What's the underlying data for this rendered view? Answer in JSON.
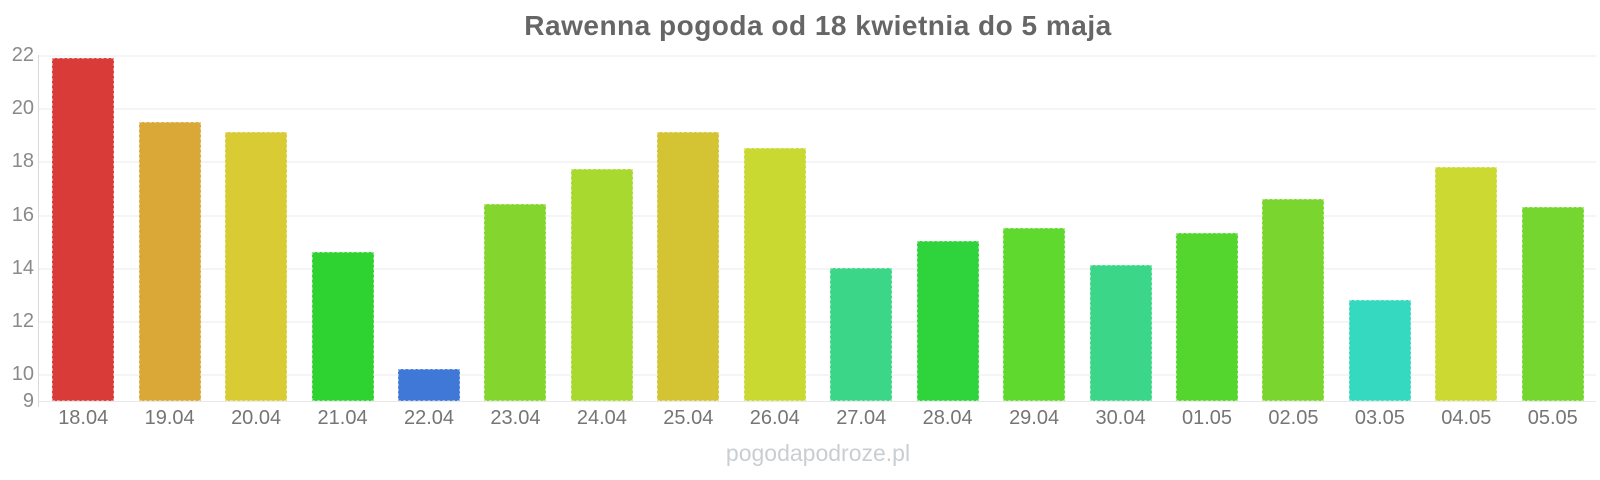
{
  "watermark": "pogodapodroze.pl",
  "chart_data": {
    "type": "bar",
    "title": "Rawenna pogoda od 18 kwietnia do 5 maja",
    "xlabel": "",
    "ylabel": "",
    "ylim": [
      9,
      22
    ],
    "yticks": [
      22,
      20,
      18,
      16,
      14,
      12,
      10,
      9
    ],
    "grid": true,
    "legend": false,
    "categories": [
      "18.04",
      "19.04",
      "20.04",
      "21.04",
      "22.04",
      "23.04",
      "24.04",
      "25.04",
      "26.04",
      "27.04",
      "28.04",
      "29.04",
      "30.04",
      "01.05",
      "02.05",
      "03.05",
      "04.05",
      "05.05"
    ],
    "values": [
      21.9,
      19.5,
      19.1,
      14.6,
      10.2,
      16.4,
      17.7,
      19.1,
      18.5,
      14.0,
      15.0,
      15.5,
      14.1,
      15.3,
      16.6,
      12.8,
      17.8,
      16.3
    ],
    "bar_colors": [
      "#d93b38",
      "#daa836",
      "#d9cb33",
      "#2fd331",
      "#4078d8",
      "#84d62e",
      "#a8d92e",
      "#d4c434",
      "#c9d932",
      "#3bd687",
      "#2fd33b",
      "#60d92e",
      "#3bd687",
      "#55d62e",
      "#7ad62e",
      "#35d9c0",
      "#ccd933",
      "#74d62e"
    ],
    "axis_colors": {
      "grid": "#f5f5f5",
      "axis_line": "#d9d9d9",
      "tick_text": "#8a8a8a",
      "category_text": "#757575",
      "title_text": "#666666"
    }
  }
}
